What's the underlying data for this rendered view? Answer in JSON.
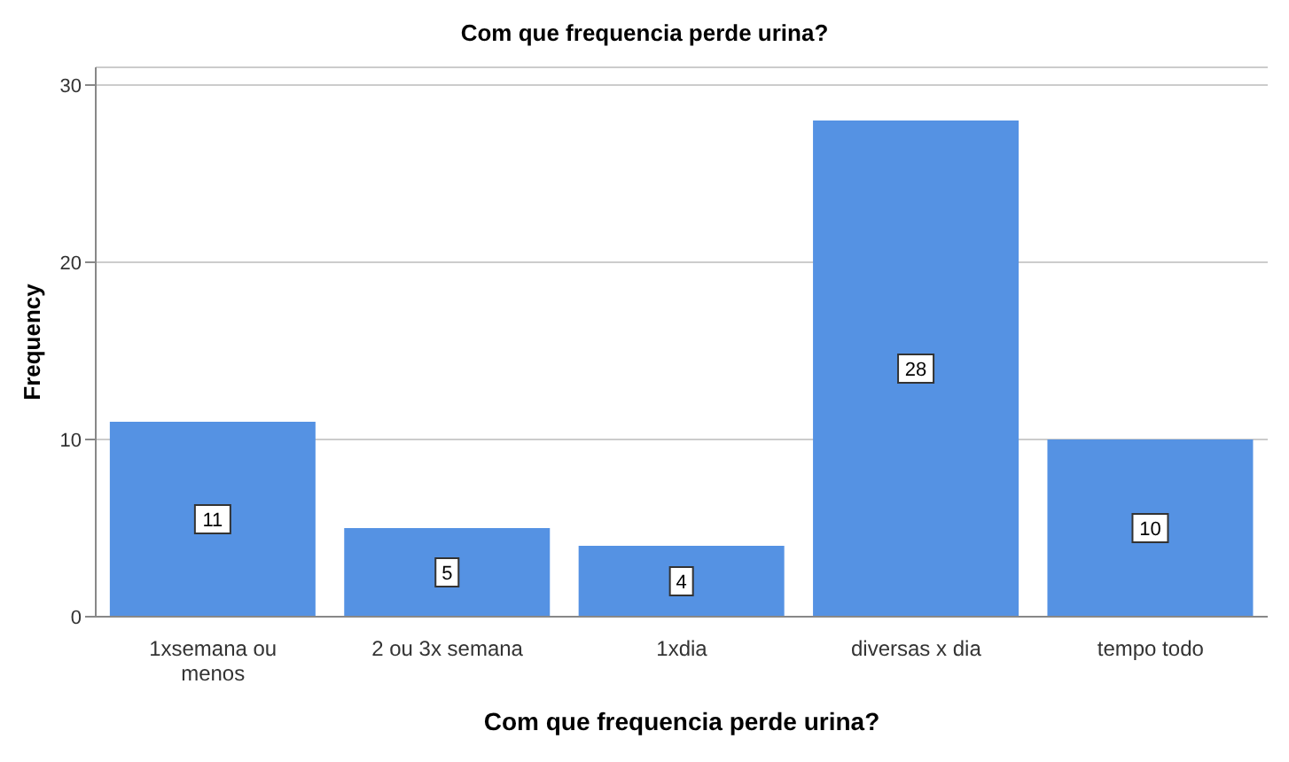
{
  "chart_data": {
    "type": "bar",
    "title": "Com que frequencia perde urina?",
    "xlabel": "Com que frequencia perde urina?",
    "ylabel": "Frequency",
    "categories": [
      "1xsemana ou menos",
      "2 ou 3x semana",
      "1xdia",
      "diversas x dia",
      "tempo todo"
    ],
    "values": [
      11,
      5,
      4,
      28,
      10
    ],
    "color": "#5592e3",
    "ylim": [
      0,
      31
    ],
    "yticks": [
      0,
      10,
      20,
      30
    ],
    "grid": "y",
    "data_labels": true
  }
}
